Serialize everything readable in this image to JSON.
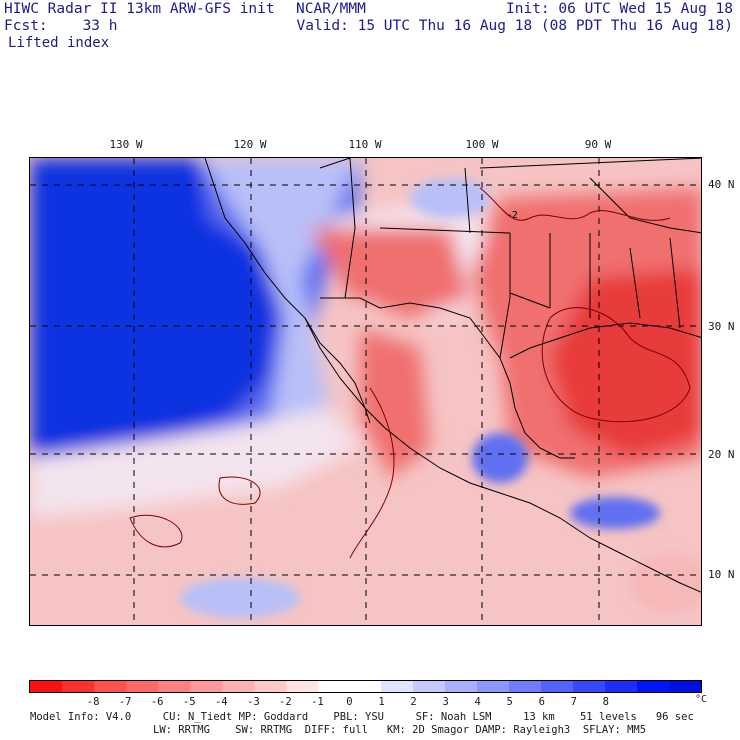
{
  "header": {
    "title_line": "HIWC Radar II 13km ARW-GFS init",
    "center": "NCAR/MMM",
    "forecast": "Fcst:    33 h",
    "init": "Init: 06 UTC Wed 15 Aug 18",
    "valid": "Valid: 15 UTC Thu 16 Aug 18 (08 PDT Thu 16 Aug 18)",
    "field": "Lifted index"
  },
  "map": {
    "longitude_labels": [
      "130 W",
      "120 W",
      "110 W",
      "100 W",
      "90 W"
    ],
    "latitude_labels": [
      "40 N",
      "30 N",
      "20 N",
      "10 N"
    ],
    "contour_label": "-2",
    "colors": {
      "ocean_stable_deep": "#1030e0",
      "stable_mid": "#6070f0",
      "stable_light": "#b8c0f8",
      "near_zero": "#f4e4ee",
      "unstable_light": "#f6b8b8",
      "unstable_mid": "#f07070",
      "unstable_strong": "#e83a3a"
    }
  },
  "colorbar": {
    "colors": [
      "#ff1010",
      "#ff3030",
      "#ff5050",
      "#ff6868",
      "#ff8080",
      "#ff9898",
      "#ffb0b0",
      "#ffc8c8",
      "#ffe4e4",
      "#ffffff",
      "#ffffff",
      "#e0e4ff",
      "#c4caff",
      "#a8b0ff",
      "#8c96ff",
      "#707cff",
      "#5462ff",
      "#3848ff",
      "#1c2eff",
      "#0014ff",
      "#0010e0"
    ],
    "ticks": [
      "-8",
      "-7",
      "-6",
      "-5",
      "-4",
      "-3",
      "-2",
      "-1",
      "0",
      "1",
      "2",
      "3",
      "4",
      "5",
      "6",
      "7",
      "8"
    ],
    "unit": "°C"
  },
  "model_info": {
    "line1": "Model Info: V4.0     CU: N_Tiedt MP: Goddard    PBL: YSU     SF: Noah LSM     13 km    51 levels   96 sec",
    "line2": "LW: RRTMG    SW: RRTMG  DIFF: full   KM: 2D Smagor DAMP: Rayleigh3  SFLAY: MM5"
  }
}
